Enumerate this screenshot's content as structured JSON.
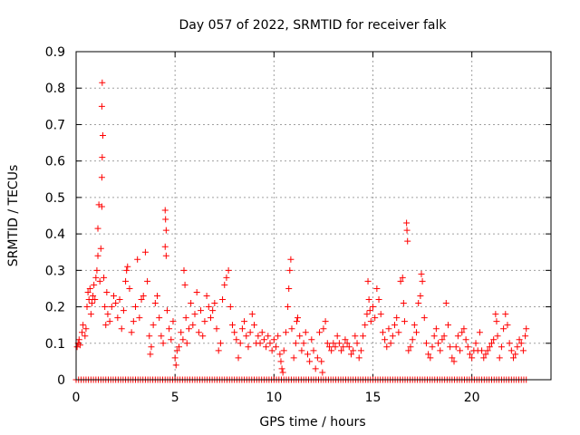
{
  "chart_data": {
    "type": "scatter",
    "title": "Day 057 of 2022, SRMTID for receiver falk",
    "xlabel": "GPS time / hours",
    "ylabel": "SRMTID / TECUs",
    "xlim": [
      0,
      24
    ],
    "ylim": [
      0,
      0.9
    ],
    "xticks": [
      0,
      5,
      10,
      15,
      20
    ],
    "xtick_labels": [
      "0",
      "5",
      "10",
      "15",
      "20"
    ],
    "yticks": [
      0,
      0.1,
      0.2,
      0.3,
      0.4,
      0.5,
      0.6,
      0.7,
      0.8,
      0.9
    ],
    "ytick_labels": [
      "0",
      "0.1",
      "0.2",
      "0.3",
      "0.4",
      "0.5",
      "0.6",
      "0.7",
      "0.8",
      "0.9"
    ],
    "grid": true,
    "marker": "+",
    "color": "#ff0000",
    "zero_row": {
      "x_start": 0.0,
      "x_end": 22.8,
      "x_step": 0.125,
      "y": 0
    },
    "series": [
      {
        "name": "SRMTID",
        "points": [
          [
            0.05,
            0.09
          ],
          [
            0.1,
            0.1
          ],
          [
            0.15,
            0.11
          ],
          [
            0.2,
            0.095
          ],
          [
            0.3,
            0.13
          ],
          [
            0.35,
            0.15
          ],
          [
            0.45,
            0.12
          ],
          [
            0.5,
            0.14
          ],
          [
            0.55,
            0.2
          ],
          [
            0.6,
            0.24
          ],
          [
            0.65,
            0.22
          ],
          [
            0.7,
            0.25
          ],
          [
            0.75,
            0.18
          ],
          [
            0.8,
            0.21
          ],
          [
            0.85,
            0.23
          ],
          [
            0.9,
            0.26
          ],
          [
            0.95,
            0.22
          ],
          [
            1.0,
            0.28
          ],
          [
            1.05,
            0.3
          ],
          [
            1.1,
            0.34
          ],
          [
            1.1,
            0.415
          ],
          [
            1.15,
            0.48
          ],
          [
            1.2,
            0.27
          ],
          [
            1.25,
            0.36
          ],
          [
            1.3,
            0.475
          ],
          [
            1.3,
            0.555
          ],
          [
            1.32,
            0.61
          ],
          [
            1.35,
            0.67
          ],
          [
            1.3,
            0.75
          ],
          [
            1.32,
            0.815
          ],
          [
            1.4,
            0.28
          ],
          [
            1.45,
            0.2
          ],
          [
            1.5,
            0.15
          ],
          [
            1.55,
            0.24
          ],
          [
            1.6,
            0.18
          ],
          [
            1.7,
            0.16
          ],
          [
            1.8,
            0.2
          ],
          [
            1.9,
            0.23
          ],
          [
            2.0,
            0.21
          ],
          [
            2.1,
            0.17
          ],
          [
            2.2,
            0.22
          ],
          [
            2.3,
            0.14
          ],
          [
            2.4,
            0.19
          ],
          [
            2.5,
            0.27
          ],
          [
            2.55,
            0.3
          ],
          [
            2.6,
            0.31
          ],
          [
            2.7,
            0.25
          ],
          [
            2.8,
            0.13
          ],
          [
            2.9,
            0.16
          ],
          [
            3.0,
            0.2
          ],
          [
            3.1,
            0.33
          ],
          [
            3.2,
            0.17
          ],
          [
            3.3,
            0.22
          ],
          [
            3.4,
            0.23
          ],
          [
            3.5,
            0.35
          ],
          [
            3.6,
            0.27
          ],
          [
            3.7,
            0.12
          ],
          [
            3.75,
            0.07
          ],
          [
            3.8,
            0.09
          ],
          [
            3.9,
            0.15
          ],
          [
            4.0,
            0.21
          ],
          [
            4.1,
            0.23
          ],
          [
            4.2,
            0.17
          ],
          [
            4.3,
            0.12
          ],
          [
            4.4,
            0.1
          ],
          [
            4.5,
            0.465
          ],
          [
            4.52,
            0.44
          ],
          [
            4.55,
            0.41
          ],
          [
            4.5,
            0.365
          ],
          [
            4.55,
            0.34
          ],
          [
            4.6,
            0.19
          ],
          [
            4.7,
            0.14
          ],
          [
            4.8,
            0.11
          ],
          [
            4.9,
            0.16
          ],
          [
            5.0,
            0.06
          ],
          [
            5.05,
            0.04
          ],
          [
            5.1,
            0.08
          ],
          [
            5.2,
            0.09
          ],
          [
            5.3,
            0.13
          ],
          [
            5.4,
            0.11
          ],
          [
            5.45,
            0.3
          ],
          [
            5.5,
            0.26
          ],
          [
            5.55,
            0.17
          ],
          [
            5.6,
            0.1
          ],
          [
            5.7,
            0.14
          ],
          [
            5.8,
            0.21
          ],
          [
            5.9,
            0.15
          ],
          [
            6.0,
            0.18
          ],
          [
            6.1,
            0.24
          ],
          [
            6.2,
            0.13
          ],
          [
            6.3,
            0.19
          ],
          [
            6.4,
            0.12
          ],
          [
            6.5,
            0.16
          ],
          [
            6.6,
            0.23
          ],
          [
            6.7,
            0.2
          ],
          [
            6.8,
            0.17
          ],
          [
            6.9,
            0.19
          ],
          [
            7.0,
            0.21
          ],
          [
            7.1,
            0.14
          ],
          [
            7.2,
            0.08
          ],
          [
            7.3,
            0.1
          ],
          [
            7.4,
            0.22
          ],
          [
            7.5,
            0.26
          ],
          [
            7.6,
            0.28
          ],
          [
            7.7,
            0.3
          ],
          [
            7.8,
            0.2
          ],
          [
            7.9,
            0.15
          ],
          [
            8.0,
            0.13
          ],
          [
            8.1,
            0.11
          ],
          [
            8.2,
            0.06
          ],
          [
            8.3,
            0.1
          ],
          [
            8.4,
            0.14
          ],
          [
            8.5,
            0.16
          ],
          [
            8.6,
            0.12
          ],
          [
            8.7,
            0.09
          ],
          [
            8.8,
            0.13
          ],
          [
            8.9,
            0.18
          ],
          [
            9.0,
            0.15
          ],
          [
            9.1,
            0.1
          ],
          [
            9.2,
            0.12
          ],
          [
            9.3,
            0.1
          ],
          [
            9.4,
            0.13
          ],
          [
            9.5,
            0.11
          ],
          [
            9.6,
            0.09
          ],
          [
            9.7,
            0.12
          ],
          [
            9.8,
            0.1
          ],
          [
            9.9,
            0.08
          ],
          [
            10.0,
            0.11
          ],
          [
            10.1,
            0.09
          ],
          [
            10.2,
            0.12
          ],
          [
            10.3,
            0.07
          ],
          [
            10.35,
            0.05
          ],
          [
            10.4,
            0.03
          ],
          [
            10.45,
            0.02
          ],
          [
            10.5,
            0.08
          ],
          [
            10.6,
            0.13
          ],
          [
            10.7,
            0.2
          ],
          [
            10.75,
            0.25
          ],
          [
            10.8,
            0.3
          ],
          [
            10.85,
            0.33
          ],
          [
            10.9,
            0.14
          ],
          [
            11.0,
            0.06
          ],
          [
            11.1,
            0.1
          ],
          [
            11.15,
            0.16
          ],
          [
            11.2,
            0.17
          ],
          [
            11.3,
            0.12
          ],
          [
            11.4,
            0.08
          ],
          [
            11.5,
            0.1
          ],
          [
            11.6,
            0.13
          ],
          [
            11.7,
            0.07
          ],
          [
            11.8,
            0.05
          ],
          [
            11.9,
            0.11
          ],
          [
            12.0,
            0.08
          ],
          [
            12.1,
            0.03
          ],
          [
            12.2,
            0.06
          ],
          [
            12.3,
            0.13
          ],
          [
            12.4,
            0.05
          ],
          [
            12.45,
            0.02
          ],
          [
            12.5,
            0.14
          ],
          [
            12.6,
            0.16
          ],
          [
            12.7,
            0.1
          ],
          [
            12.8,
            0.09
          ],
          [
            12.9,
            0.08
          ],
          [
            13.0,
            0.1
          ],
          [
            13.1,
            0.09
          ],
          [
            13.2,
            0.12
          ],
          [
            13.3,
            0.1
          ],
          [
            13.4,
            0.08
          ],
          [
            13.5,
            0.09
          ],
          [
            13.6,
            0.11
          ],
          [
            13.7,
            0.1
          ],
          [
            13.8,
            0.09
          ],
          [
            13.9,
            0.07
          ],
          [
            14.0,
            0.08
          ],
          [
            14.1,
            0.12
          ],
          [
            14.2,
            0.1
          ],
          [
            14.3,
            0.06
          ],
          [
            14.4,
            0.08
          ],
          [
            14.5,
            0.12
          ],
          [
            14.6,
            0.15
          ],
          [
            14.7,
            0.18
          ],
          [
            14.75,
            0.27
          ],
          [
            14.8,
            0.22
          ],
          [
            14.85,
            0.19
          ],
          [
            14.9,
            0.16
          ],
          [
            15.0,
            0.2
          ],
          [
            15.1,
            0.17
          ],
          [
            15.2,
            0.25
          ],
          [
            15.3,
            0.22
          ],
          [
            15.4,
            0.18
          ],
          [
            15.5,
            0.13
          ],
          [
            15.6,
            0.11
          ],
          [
            15.7,
            0.09
          ],
          [
            15.8,
            0.14
          ],
          [
            15.9,
            0.1
          ],
          [
            16.0,
            0.12
          ],
          [
            16.1,
            0.15
          ],
          [
            16.2,
            0.17
          ],
          [
            16.3,
            0.13
          ],
          [
            16.4,
            0.27
          ],
          [
            16.5,
            0.28
          ],
          [
            16.55,
            0.21
          ],
          [
            16.6,
            0.16
          ],
          [
            16.7,
            0.43
          ],
          [
            16.72,
            0.41
          ],
          [
            16.75,
            0.38
          ],
          [
            16.8,
            0.08
          ],
          [
            16.9,
            0.09
          ],
          [
            17.0,
            0.11
          ],
          [
            17.1,
            0.15
          ],
          [
            17.2,
            0.13
          ],
          [
            17.3,
            0.21
          ],
          [
            17.4,
            0.23
          ],
          [
            17.45,
            0.29
          ],
          [
            17.5,
            0.27
          ],
          [
            17.6,
            0.17
          ],
          [
            17.7,
            0.1
          ],
          [
            17.8,
            0.07
          ],
          [
            17.9,
            0.06
          ],
          [
            18.0,
            0.09
          ],
          [
            18.1,
            0.12
          ],
          [
            18.2,
            0.14
          ],
          [
            18.3,
            0.1
          ],
          [
            18.4,
            0.08
          ],
          [
            18.5,
            0.11
          ],
          [
            18.6,
            0.12
          ],
          [
            18.7,
            0.21
          ],
          [
            18.8,
            0.15
          ],
          [
            18.9,
            0.09
          ],
          [
            19.0,
            0.06
          ],
          [
            19.1,
            0.05
          ],
          [
            19.2,
            0.09
          ],
          [
            19.3,
            0.12
          ],
          [
            19.4,
            0.08
          ],
          [
            19.5,
            0.13
          ],
          [
            19.6,
            0.14
          ],
          [
            19.7,
            0.11
          ],
          [
            19.8,
            0.09
          ],
          [
            19.9,
            0.07
          ],
          [
            20.0,
            0.06
          ],
          [
            20.1,
            0.08
          ],
          [
            20.2,
            0.1
          ],
          [
            20.3,
            0.08
          ],
          [
            20.4,
            0.13
          ],
          [
            20.5,
            0.08
          ],
          [
            20.6,
            0.06
          ],
          [
            20.7,
            0.07
          ],
          [
            20.8,
            0.08
          ],
          [
            20.9,
            0.09
          ],
          [
            21.0,
            0.1
          ],
          [
            21.1,
            0.11
          ],
          [
            21.2,
            0.18
          ],
          [
            21.25,
            0.16
          ],
          [
            21.3,
            0.12
          ],
          [
            21.4,
            0.06
          ],
          [
            21.5,
            0.09
          ],
          [
            21.6,
            0.14
          ],
          [
            21.7,
            0.18
          ],
          [
            21.8,
            0.15
          ],
          [
            21.9,
            0.1
          ],
          [
            22.0,
            0.08
          ],
          [
            22.1,
            0.06
          ],
          [
            22.2,
            0.07
          ],
          [
            22.3,
            0.09
          ],
          [
            22.4,
            0.11
          ],
          [
            22.5,
            0.1
          ],
          [
            22.6,
            0.08
          ],
          [
            22.7,
            0.12
          ],
          [
            22.75,
            0.14
          ]
        ]
      }
    ]
  }
}
